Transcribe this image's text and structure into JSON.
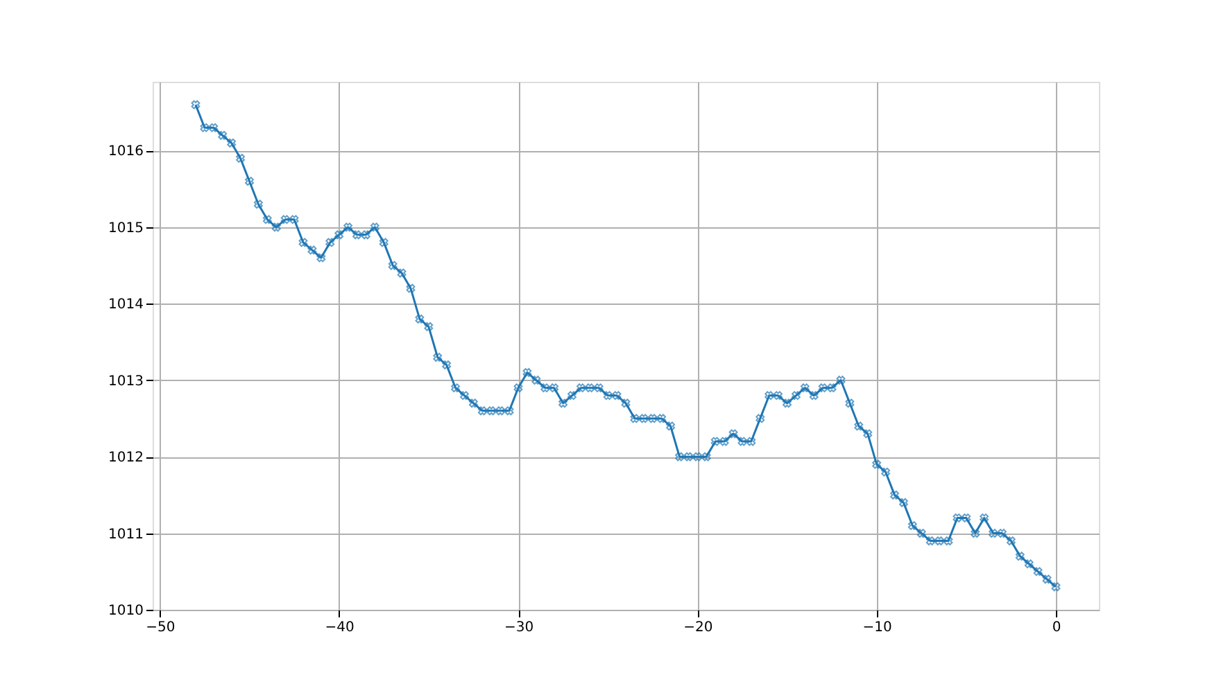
{
  "chart_data": {
    "type": "line",
    "x": [
      -48,
      -47.5,
      -47,
      -46.5,
      -46,
      -45.5,
      -45,
      -44.5,
      -44,
      -43.5,
      -43,
      -42.5,
      -42,
      -41.5,
      -41,
      -40.5,
      -40,
      -39.5,
      -39,
      -38.5,
      -38,
      -37.5,
      -37,
      -36.5,
      -36,
      -35.5,
      -35,
      -34.5,
      -34,
      -33.5,
      -33,
      -32.5,
      -32,
      -31.5,
      -31,
      -30.5,
      -30,
      -29.5,
      -29,
      -28.5,
      -28,
      -27.5,
      -27,
      -26.5,
      -26,
      -25.5,
      -25,
      -24.5,
      -24,
      -23.5,
      -23,
      -22.5,
      -22,
      -21.5,
      -21,
      -20.5,
      -20,
      -19.5,
      -19,
      -18.5,
      -18,
      -17.5,
      -17,
      -16.5,
      -16,
      -15.5,
      -15,
      -14.5,
      -14,
      -13.5,
      -13,
      -12.5,
      -12,
      -11.5,
      -11,
      -10.5,
      -10,
      -9.5,
      -9,
      -8.5,
      -8,
      -7.5,
      -7,
      -6.5,
      -6,
      -5.5,
      -5,
      -4.5,
      -4,
      -3.5,
      -3,
      -2.5,
      -2,
      -1.5,
      -1,
      -0.5,
      0
    ],
    "series": [
      {
        "color": "#1f77b4",
        "values": [
          1016.6,
          1016.3,
          1016.3,
          1016.2,
          1016.1,
          1015.9,
          1015.6,
          1015.3,
          1015.1,
          1015.0,
          1015.1,
          1015.1,
          1014.8,
          1014.7,
          1014.6,
          1014.8,
          1014.9,
          1015.0,
          1014.9,
          1014.9,
          1015.0,
          1014.8,
          1014.5,
          1014.4,
          1014.2,
          1013.8,
          1013.7,
          1013.3,
          1013.2,
          1012.9,
          1012.8,
          1012.7,
          1012.6,
          1012.6,
          1012.6,
          1012.6,
          1012.9,
          1013.1,
          1013.0,
          1012.9,
          1012.9,
          1012.7,
          1012.8,
          1012.9,
          1012.9,
          1012.9,
          1012.8,
          1012.8,
          1012.7,
          1012.5,
          1012.5,
          1012.5,
          1012.5,
          1012.4,
          1012.0,
          1012.0,
          1012.0,
          1012.0,
          1012.2,
          1012.2,
          1012.3,
          1012.2,
          1012.2,
          1012.5,
          1012.8,
          1012.8,
          1012.7,
          1012.8,
          1012.9,
          1012.8,
          1012.9,
          1012.9,
          1013.0,
          1012.7,
          1012.4,
          1012.3,
          1011.9,
          1011.8,
          1011.5,
          1011.4,
          1011.1,
          1011.0,
          1010.9,
          1010.9,
          1010.9,
          1011.2,
          1011.2,
          1011.0,
          1011.2,
          1011.0,
          1011.0,
          1010.9,
          1010.7,
          1010.6,
          1010.5,
          1010.4,
          1010.3
        ]
      }
    ],
    "xlim": [
      -50.4,
      2.4
    ],
    "xticks": [
      -50,
      -40,
      -30,
      -20,
      -10,
      0
    ],
    "ylim": [
      1010.0,
      1016.9
    ],
    "yticks": [
      1010,
      1011,
      1012,
      1013,
      1014,
      1015,
      1016
    ],
    "grid": true,
    "marker": "cross",
    "line_style": "solid"
  }
}
